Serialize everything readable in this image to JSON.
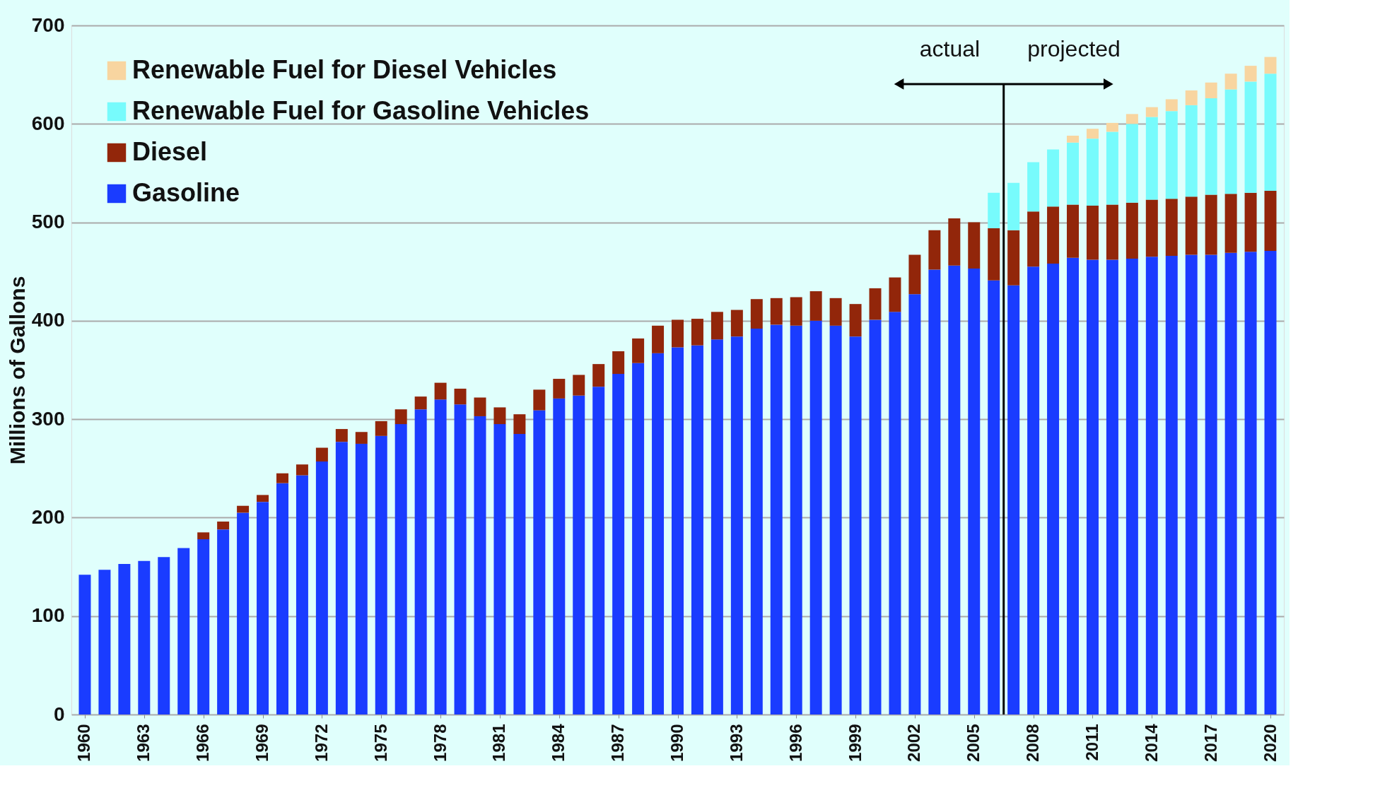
{
  "chart_data": {
    "type": "bar",
    "stacked": true,
    "ylabel": "Millions of Gallons",
    "x": [
      1960,
      1961,
      1962,
      1963,
      1964,
      1965,
      1966,
      1967,
      1968,
      1969,
      1970,
      1971,
      1972,
      1973,
      1974,
      1975,
      1976,
      1977,
      1978,
      1979,
      1980,
      1981,
      1982,
      1983,
      1984,
      1985,
      1986,
      1987,
      1988,
      1989,
      1990,
      1991,
      1992,
      1993,
      1994,
      1995,
      1996,
      1997,
      1998,
      1999,
      2000,
      2001,
      2002,
      2003,
      2004,
      2005,
      2006,
      2007,
      2008,
      2009,
      2010,
      2011,
      2012,
      2013,
      2014,
      2015,
      2016,
      2017,
      2018,
      2019,
      2020
    ],
    "xlim": [
      1959.5,
      2020.5
    ],
    "xticks": [
      1960,
      1963,
      1966,
      1969,
      1972,
      1975,
      1978,
      1981,
      1984,
      1987,
      1990,
      1993,
      1996,
      1999,
      2002,
      2005,
      2008,
      2011,
      2014,
      2017,
      2020
    ],
    "ylim": [
      0,
      700
    ],
    "yticks": [
      0,
      100,
      200,
      300,
      400,
      500,
      600,
      700
    ],
    "grid": "y",
    "legend": "top left",
    "series": [
      {
        "name": "Gasoline",
        "color": "#1a3cff",
        "values": [
          142,
          147,
          153,
          156,
          160,
          169,
          178,
          188,
          205,
          216,
          235,
          243,
          257,
          277,
          275,
          283,
          295,
          310,
          320,
          315,
          303,
          295,
          285,
          309,
          321,
          324,
          333,
          346,
          357,
          367,
          373,
          375,
          381,
          384,
          392,
          396,
          395,
          400,
          395,
          384,
          401,
          409,
          427,
          452,
          456,
          453,
          441,
          436,
          455,
          458,
          464,
          462,
          462,
          463,
          465,
          466,
          467,
          467,
          469,
          470,
          471
        ]
      },
      {
        "name": "Diesel",
        "color": "#92260a",
        "values": [
          0,
          0,
          0,
          0,
          0,
          0,
          7,
          8,
          7,
          7,
          10,
          11,
          14,
          13,
          12,
          15,
          15,
          13,
          17,
          16,
          19,
          17,
          20,
          21,
          20,
          21,
          23,
          23,
          25,
          28,
          28,
          27,
          28,
          27,
          30,
          27,
          29,
          30,
          28,
          33,
          32,
          35,
          40,
          40,
          48,
          47,
          53,
          56,
          56,
          58,
          54,
          55,
          56,
          57,
          58,
          58,
          59,
          61,
          60,
          60,
          61
        ]
      },
      {
        "name": "Renewable Fuel for Gasoline Vehicles",
        "color": "#77fbfc",
        "values": [
          0,
          0,
          0,
          0,
          0,
          0,
          0,
          0,
          0,
          0,
          0,
          0,
          0,
          0,
          0,
          0,
          0,
          0,
          0,
          0,
          0,
          0,
          0,
          0,
          0,
          0,
          0,
          0,
          0,
          0,
          0,
          0,
          0,
          0,
          0,
          0,
          0,
          0,
          0,
          0,
          0,
          0,
          0,
          0,
          0,
          0,
          36,
          48,
          50,
          58,
          63,
          68,
          74,
          80,
          84,
          89,
          93,
          98,
          106,
          113,
          119
        ]
      },
      {
        "name": "Renewable Fuel for Diesel Vehicles",
        "color": "#f8d5a0",
        "values": [
          0,
          0,
          0,
          0,
          0,
          0,
          0,
          0,
          0,
          0,
          0,
          0,
          0,
          0,
          0,
          0,
          0,
          0,
          0,
          0,
          0,
          0,
          0,
          0,
          0,
          0,
          0,
          0,
          0,
          0,
          0,
          0,
          0,
          0,
          0,
          0,
          0,
          0,
          0,
          0,
          0,
          0,
          0,
          0,
          0,
          0,
          0,
          0,
          0,
          0,
          7,
          10,
          9,
          10,
          10,
          12,
          15,
          16,
          16,
          16,
          17
        ]
      }
    ],
    "ref_lines": [
      {
        "axis": "x",
        "value": 2006.5,
        "color": "#000000"
      }
    ],
    "annotations": [
      "actual",
      "projected"
    ]
  }
}
